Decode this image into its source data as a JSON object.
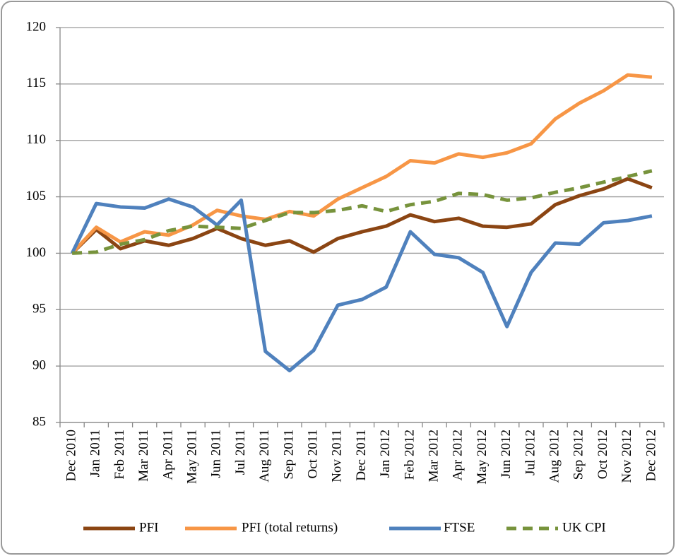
{
  "chart_data": {
    "type": "line",
    "categories": [
      "Dec 2010",
      "Jan 2011",
      "Feb 2011",
      "Mar 2011",
      "Apr 2011",
      "May 2011",
      "Jun 2011",
      "Jul 2011",
      "Aug 2011",
      "Sep 2011",
      "Oct 2011",
      "Nov 2011",
      "Dec 2011",
      "Jan 2012",
      "Feb 2012",
      "Mar 2012",
      "Apr 2012",
      "May 2012",
      "Jun 2012",
      "Jul 2012",
      "Aug 2012",
      "Sep 2012",
      "Oct 2012",
      "Nov 2012",
      "Dec 2012"
    ],
    "series": [
      {
        "name": "PFI",
        "color": "#8b4513",
        "dashed": false,
        "values": [
          100,
          102.1,
          100.4,
          101.1,
          100.7,
          101.3,
          102.2,
          101.3,
          100.7,
          101.1,
          100.1,
          101.3,
          101.9,
          102.4,
          103.4,
          102.8,
          103.1,
          102.4,
          102.3,
          102.6,
          104.3,
          105.1,
          105.7,
          106.6,
          105.8
        ]
      },
      {
        "name": "PFI (total returns)",
        "color": "#f79646",
        "dashed": false,
        "values": [
          100,
          102.3,
          101,
          101.9,
          101.6,
          102.5,
          103.8,
          103.3,
          103,
          103.7,
          103.3,
          104.8,
          105.8,
          106.8,
          108.2,
          108,
          108.8,
          108.5,
          108.9,
          109.7,
          111.9,
          113.3,
          114.4,
          115.8,
          115.6
        ]
      },
      {
        "name": "FTSE",
        "color": "#4f81bd",
        "dashed": false,
        "values": [
          100,
          104.4,
          104.1,
          104,
          104.8,
          104.1,
          102.5,
          104.7,
          91.3,
          89.6,
          91.4,
          95.4,
          95.9,
          97,
          101.9,
          99.9,
          99.6,
          98.3,
          93.5,
          98.3,
          100.9,
          100.8,
          102.7,
          102.9,
          103.3
        ]
      },
      {
        "name": "UK CPI",
        "color": "#77933c",
        "dashed": true,
        "values": [
          100,
          100.1,
          100.8,
          101.2,
          102,
          102.4,
          102.3,
          102.2,
          102.9,
          103.6,
          103.6,
          103.8,
          104.2,
          103.7,
          104.3,
          104.6,
          105.3,
          105.2,
          104.7,
          104.9,
          105.4,
          105.8,
          106.3,
          106.8,
          107.3
        ]
      }
    ],
    "ylim": [
      85,
      120
    ],
    "yticks": [
      85,
      90,
      95,
      100,
      105,
      110,
      115,
      120
    ],
    "grid": true,
    "legend": "bottom"
  }
}
